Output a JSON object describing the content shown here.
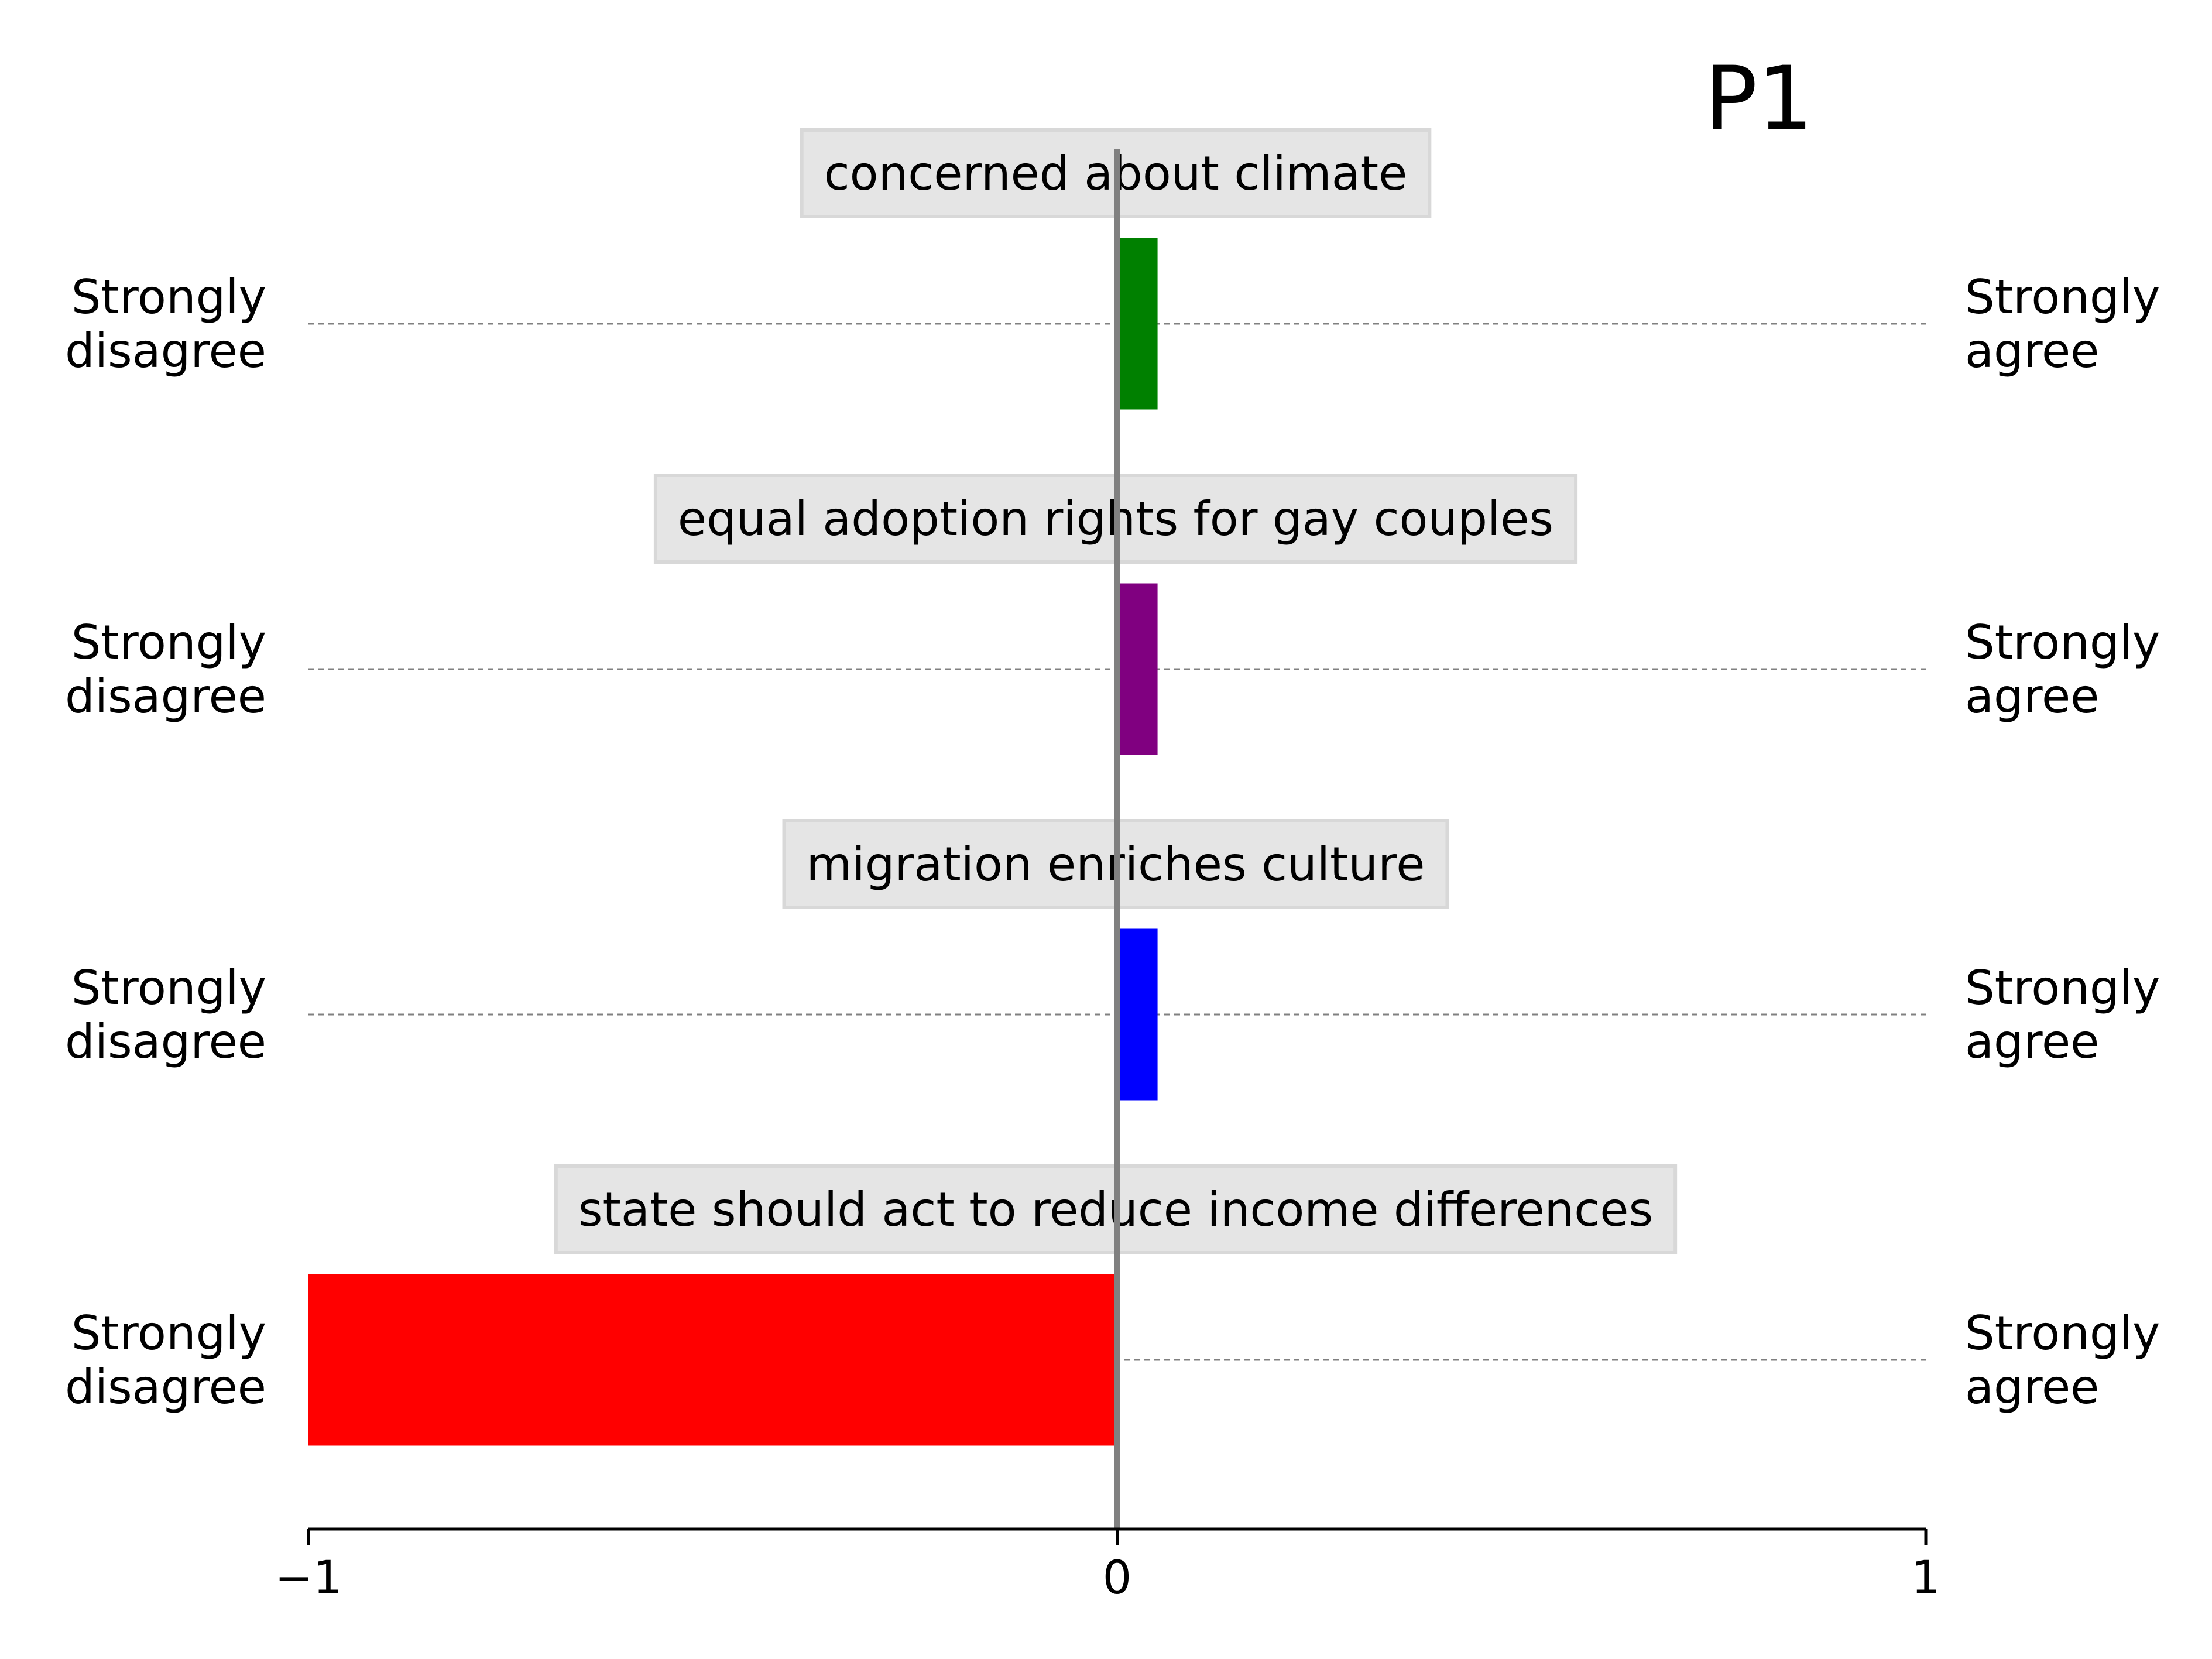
{
  "chart_data": {
    "type": "bar",
    "orientation": "horizontal",
    "title": "P1",
    "left_label": "Strongly\ndisagree",
    "right_label": "Strongly\nagree",
    "xlim": [
      -1,
      1
    ],
    "x_ticks": [
      {
        "value": -1,
        "label": "−1"
      },
      {
        "value": 0,
        "label": "0"
      },
      {
        "value": 1,
        "label": "1"
      }
    ],
    "categories": [
      "concerned about climate",
      "equal adoption rights for gay couples",
      "migration enriches culture",
      "state should act to reduce income differences"
    ],
    "values": [
      0.05,
      0.05,
      0.05,
      -1
    ],
    "colors": [
      "#008000",
      "#800080",
      "#0000ff",
      "#ff0000"
    ],
    "grid": "dashed guide line per row"
  }
}
